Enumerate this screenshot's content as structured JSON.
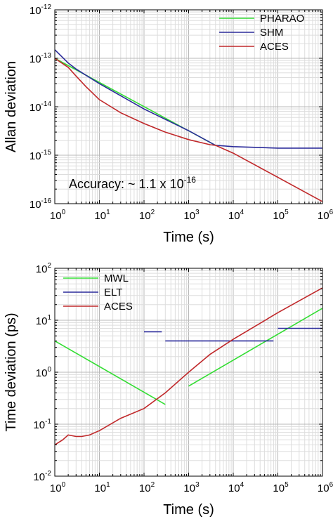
{
  "chart_data": [
    {
      "type": "line",
      "xlabel": "Time (s)",
      "ylabel": "Allan deviation",
      "x_scale": "log",
      "y_scale": "log",
      "xlim": [
        1,
        1000000
      ],
      "ylim": [
        1e-16,
        1e-12
      ],
      "grid": true,
      "legend_position": "top-right",
      "x_ticks": [
        {
          "base": "10",
          "exp": "0"
        },
        {
          "base": "10",
          "exp": "1"
        },
        {
          "base": "10",
          "exp": "2"
        },
        {
          "base": "10",
          "exp": "3"
        },
        {
          "base": "10",
          "exp": "4"
        },
        {
          "base": "10",
          "exp": "5"
        },
        {
          "base": "10",
          "exp": "6"
        }
      ],
      "y_ticks": [
        {
          "base": "10",
          "exp": "-12",
          "value": 1e-12
        },
        {
          "base": "10",
          "exp": "-13",
          "value": 1e-13
        },
        {
          "base": "10",
          "exp": "-14",
          "value": 1e-14
        },
        {
          "base": "10",
          "exp": "-15",
          "value": 1e-15
        },
        {
          "base": "10",
          "exp": "-16",
          "value": 1e-16
        }
      ],
      "annotation": {
        "text": "Accuracy: ~ 1.1 x 10",
        "exp": "-16"
      },
      "series": [
        {
          "name": "PHARAO",
          "color": "#33dd33",
          "points": [
            [
              1,
              1e-13
            ],
            [
              4000,
              1.6e-15
            ]
          ]
        },
        {
          "name": "SHM",
          "color": "#2a2a9a",
          "points": [
            [
              1,
              1.5e-13
            ],
            [
              2,
              8e-14
            ],
            [
              3,
              6e-14
            ],
            [
              10,
              3e-14
            ],
            [
              100,
              9e-15
            ],
            [
              1000,
              3.2e-15
            ],
            [
              4000,
              1.6e-15
            ],
            [
              10000,
              1.5e-15
            ],
            [
              100000,
              1.4e-15
            ],
            [
              1000000,
              1.4e-15
            ]
          ]
        },
        {
          "name": "ACES",
          "color": "#c0282a",
          "points": [
            [
              1,
              1e-13
            ],
            [
              2,
              6.5e-14
            ],
            [
              3,
              4.3e-14
            ],
            [
              5,
              2.6e-14
            ],
            [
              10,
              1.4e-14
            ],
            [
              30,
              7.5e-15
            ],
            [
              100,
              4.5e-15
            ],
            [
              300,
              3e-15
            ],
            [
              1000,
              2.1e-15
            ],
            [
              3000,
              1.65e-15
            ],
            [
              4000,
              1.6e-15
            ],
            [
              10000,
              1.1e-15
            ],
            [
              100000,
              3.5e-16
            ],
            [
              1000000,
              1.1e-16
            ]
          ]
        }
      ]
    },
    {
      "type": "line",
      "xlabel": "Time (s)",
      "ylabel": "Time deviation (ps)",
      "x_scale": "log",
      "y_scale": "log",
      "xlim": [
        1,
        1000000
      ],
      "ylim": [
        0.01,
        100
      ],
      "grid": true,
      "legend_position": "top-left",
      "x_ticks": [
        {
          "base": "10",
          "exp": "0"
        },
        {
          "base": "10",
          "exp": "1"
        },
        {
          "base": "10",
          "exp": "2"
        },
        {
          "base": "10",
          "exp": "3"
        },
        {
          "base": "10",
          "exp": "4"
        },
        {
          "base": "10",
          "exp": "5"
        },
        {
          "base": "10",
          "exp": "6"
        }
      ],
      "y_ticks": [
        {
          "base": "10",
          "exp": "2",
          "value": 100
        },
        {
          "base": "10",
          "exp": "1",
          "value": 10
        },
        {
          "base": "10",
          "exp": "0",
          "value": 1
        },
        {
          "base": "10",
          "exp": "-1",
          "value": 0.1
        },
        {
          "base": "10",
          "exp": "-2",
          "value": 0.01
        }
      ],
      "series": [
        {
          "name": "MWL",
          "color": "#33dd33",
          "segments": [
            [
              [
                1,
                4
              ],
              [
                300,
                0.24
              ]
            ],
            [
              [
                1000,
                0.54
              ],
              [
                1000000,
                17
              ]
            ]
          ]
        },
        {
          "name": "ELT",
          "color": "#2a2a9a",
          "segments": [
            [
              [
                100,
                6
              ],
              [
                250,
                6
              ]
            ],
            [
              [
                300,
                4
              ],
              [
                80000,
                4
              ]
            ],
            [
              [
                100000,
                7
              ],
              [
                1000000,
                7
              ]
            ]
          ]
        },
        {
          "name": "ACES",
          "color": "#c0282a",
          "segments": [
            [
              [
                1,
                0.04
              ],
              [
                1.5,
                0.05
              ],
              [
                2,
                0.062
              ],
              [
                3,
                0.058
              ],
              [
                4,
                0.058
              ],
              [
                6,
                0.062
              ],
              [
                10,
                0.075
              ],
              [
                30,
                0.13
              ],
              [
                100,
                0.2
              ],
              [
                300,
                0.4
              ],
              [
                1000,
                1.0
              ],
              [
                3000,
                2.2
              ],
              [
                10000,
                4.3
              ],
              [
                100000,
                14
              ],
              [
                1000000,
                42
              ]
            ]
          ]
        }
      ]
    }
  ]
}
